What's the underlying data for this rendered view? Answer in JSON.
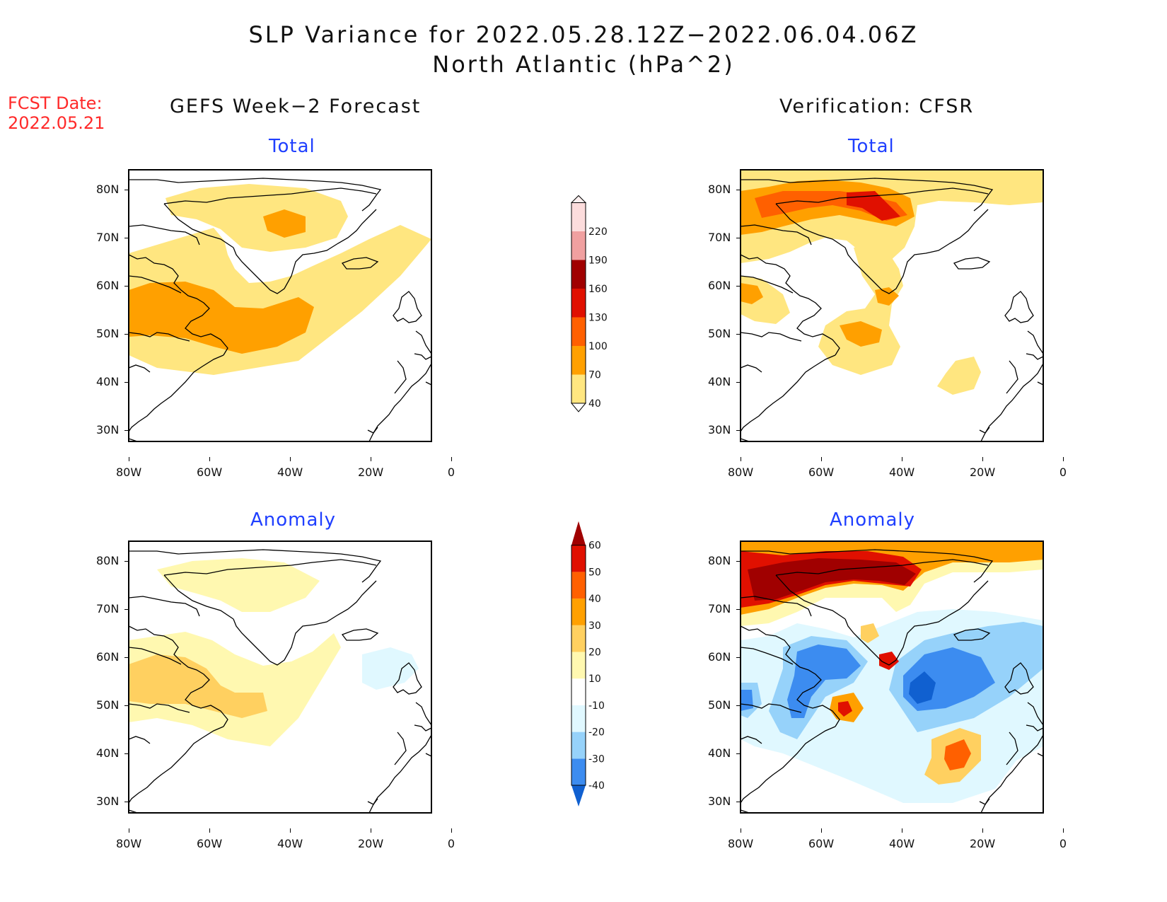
{
  "header": {
    "title": "SLP Variance for 2022.05.28.12Z−2022.06.04.06Z",
    "subtitle": "North Atlantic (hPa^2)"
  },
  "fcst": {
    "line1": "FCST Date:",
    "line2": "2022.05.21"
  },
  "columns": {
    "left": "GEFS Week−2 Forecast",
    "right": "Verification: CFSR"
  },
  "panels": {
    "total_label": "Total",
    "anomaly_label": "Anomaly"
  },
  "axes": {
    "lat_labels": [
      "80N",
      "70N",
      "60N",
      "50N",
      "40N",
      "30N"
    ],
    "lon_labels": [
      "80W",
      "60W",
      "40W",
      "20W",
      "0"
    ]
  },
  "legend_total": {
    "levels": [
      "40",
      "70",
      "100",
      "130",
      "160",
      "190",
      "220"
    ],
    "colors": [
      "#ffe680",
      "#ffa000",
      "#ff6000",
      "#e01000",
      "#a00000",
      "#f0a0a0",
      "#fcdcdc"
    ]
  },
  "legend_anom": {
    "levels": [
      "-40",
      "-30",
      "-20",
      "-10",
      "10",
      "20",
      "30",
      "40",
      "50",
      "60"
    ],
    "colors": [
      "#1060d0",
      "#3c8cf0",
      "#96d2fa",
      "#e0f8ff",
      "#ffffff",
      "#fff8b0",
      "#ffd060",
      "#ffa000",
      "#ff6000",
      "#e01000",
      "#a00000"
    ]
  }
}
